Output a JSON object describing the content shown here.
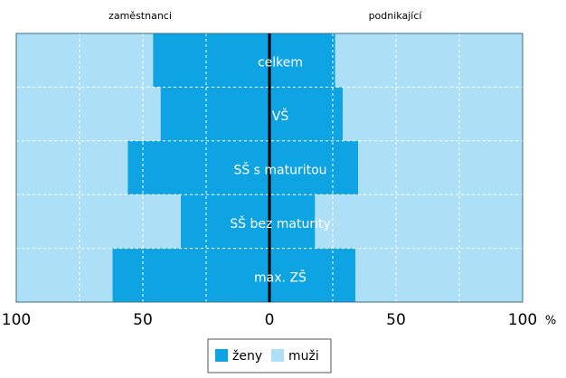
{
  "chart_data": {
    "type": "butterfly",
    "left_title": "zaměstnanci",
    "right_title": "podnikající",
    "categories": [
      "celkem",
      "VŠ",
      "SŠ s maturitou",
      "SŠ bez maturity",
      "max. ZŠ"
    ],
    "series": [
      {
        "name": "ženy",
        "color": "#0ea3e2",
        "left": [
          46,
          43,
          56,
          35,
          62
        ],
        "right": [
          26,
          29,
          35,
          18,
          34
        ]
      },
      {
        "name": "muži",
        "color": "#ade0f7",
        "left": [
          54,
          57,
          44,
          65,
          38
        ],
        "right": [
          74,
          71,
          65,
          82,
          66
        ]
      }
    ],
    "xlim": [
      -100,
      100
    ],
    "xticks": [
      {
        "value": -100,
        "label": "100"
      },
      {
        "value": -50,
        "label": "50"
      },
      0,
      50,
      100
    ],
    "grid_lines": [
      -75,
      -50,
      -25,
      25,
      50,
      75
    ],
    "unit": "%"
  }
}
